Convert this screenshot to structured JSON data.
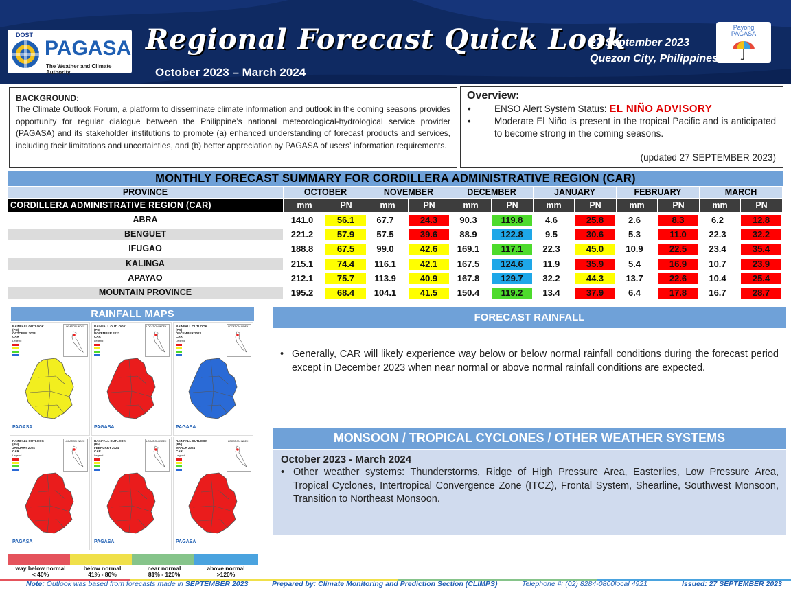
{
  "header": {
    "dost": "DOST",
    "agency": "PAGASA",
    "agency_tagline": "The Weather and Climate Authority",
    "title": "Regional Forecast Quick Look",
    "period": "October 2023 – March 2024",
    "date": "27 September 2023",
    "location": "Quezon City, Philippines",
    "payong_line1": "Payong",
    "payong_line2": "PAGASA"
  },
  "background": {
    "heading": "BACKGROUND:",
    "text": "The Climate Outlook Forum, a platform to disseminate climate information and outlook in the coming seasons provides opportunity for regular dialogue between the Philippine’s national meteorological-hydrological service provider (PAGASA) and its stakeholder institutions to promote (a) enhanced understanding of forecast products and services, including their limitations and uncertainties, and (b) better appreciation by PAGASA of users’ information requirements."
  },
  "overview": {
    "heading": "Overview:",
    "enso_label": "ENSO Alert System Status: ",
    "enso_status": "EL NIÑO ADVISORY",
    "elnino_text": "Moderate El Niño is present in the tropical Pacific and is anticipated to become strong in the coming seasons.",
    "updated": "(updated 27 SEPTEMBER 2023)"
  },
  "table": {
    "title": "MONTHLY FORECAST SUMMARY FOR CORDILLERA ADMINISTRATIVE REGION (CAR)",
    "province_header": "PROVINCE",
    "region_label": "CORDILLERA ADMINISTRATIVE REGION (CAR)",
    "months": [
      "OCTOBER",
      "NOVEMBER",
      "DECEMBER",
      "JANUARY",
      "FEBRUARY",
      "MARCH"
    ],
    "col_mm": "mm",
    "col_pn": "PN",
    "rows": [
      {
        "province": "ABRA",
        "mm": [
          "141.0",
          "67.7",
          "90.3",
          "4.6",
          "2.6",
          "6.2"
        ],
        "pn": [
          "56.1",
          "24.3",
          "119.8",
          "25.8",
          "8.3",
          "12.8"
        ]
      },
      {
        "province": "BENGUET",
        "mm": [
          "221.2",
          "57.5",
          "88.9",
          "9.5",
          "5.3",
          "22.3"
        ],
        "pn": [
          "57.9",
          "39.6",
          "122.8",
          "30.6",
          "11.0",
          "32.2"
        ]
      },
      {
        "province": "IFUGAO",
        "mm": [
          "188.8",
          "99.0",
          "169.1",
          "22.3",
          "10.9",
          "23.4"
        ],
        "pn": [
          "67.5",
          "42.6",
          "117.1",
          "45.0",
          "22.5",
          "35.4"
        ]
      },
      {
        "province": "KALINGA",
        "mm": [
          "215.1",
          "116.1",
          "167.5",
          "11.9",
          "5.4",
          "10.7"
        ],
        "pn": [
          "74.4",
          "42.1",
          "124.6",
          "35.9",
          "16.9",
          "23.9"
        ]
      },
      {
        "province": "APAYAO",
        "mm": [
          "212.1",
          "113.9",
          "167.8",
          "32.2",
          "13.7",
          "10.4"
        ],
        "pn": [
          "75.7",
          "40.9",
          "129.7",
          "44.3",
          "22.6",
          "25.4"
        ]
      },
      {
        "province": "MOUNTAIN PROVINCE",
        "mm": [
          "195.2",
          "104.1",
          "150.4",
          "13.4",
          "6.4",
          "16.7"
        ],
        "pn": [
          "68.4",
          "41.5",
          "119.2",
          "37.9",
          "17.8",
          "28.7"
        ]
      }
    ]
  },
  "rainfall_maps": {
    "heading": "RAINFALL MAPS",
    "maps": [
      {
        "title1": "RAINFALL OUTLOOK (PN)",
        "title2": "OCTOBER 2023",
        "title3": "CAR",
        "color": "#f2ee1f"
      },
      {
        "title1": "RAINFALL OUTLOOK (PN)",
        "title2": "NOVEMBER 2023",
        "title3": "CAR",
        "color": "#ea1c1c"
      },
      {
        "title1": "RAINFALL OUTLOOK (PN)",
        "title2": "DECEMBER 2023",
        "title3": "CAR",
        "color": "#2a6ad6"
      },
      {
        "title1": "RAINFALL OUTLOOK (PN)",
        "title2": "JANUARY 2024",
        "title3": "CAR",
        "color": "#ea1c1c"
      },
      {
        "title1": "RAINFALL OUTLOOK (PN)",
        "title2": "FEBRUARY 2024",
        "title3": "CAR",
        "color": "#ea1c1c"
      },
      {
        "title1": "RAINFALL OUTLOOK (PN)",
        "title2": "MARCH 2024",
        "title3": "CAR",
        "color": "#ea1c1c"
      }
    ],
    "legend_label": "Legend",
    "location_label": "LOCATION INDEX",
    "pagasa_label": "PAGASA"
  },
  "legend": [
    {
      "label": "way below normal",
      "range": "< 40%",
      "color": "#e5535c"
    },
    {
      "label": "below normal",
      "range": "41%  - 80%",
      "color": "#f0e04a"
    },
    {
      "label": "near normal",
      "range": "81% - 120%",
      "color": "#86c48a"
    },
    {
      "label": "above normal",
      "range": ">120%",
      "color": "#4aa3df"
    }
  ],
  "forecast_rainfall": {
    "heading": "FORECAST RAINFALL",
    "text": "Generally, CAR will likely experience way below or below normal rainfall conditions during the forecast period except in December 2023 when near normal or above normal rainfall conditions are expected."
  },
  "monsoon": {
    "heading": "MONSOON / TROPICAL CYCLONES / OTHER WEATHER SYSTEMS",
    "period": "October 2023 - March 2024",
    "text": "Other weather systems: Thunderstorms,  Ridge of High Pressure Area,  Easterlies, Low Pressure Area, Tropical Cyclones, Intertropical Convergence Zone (ITCZ), Frontal System, Shearline, Southwest Monsoon, Transition to Northeast Monsoon."
  },
  "footer": {
    "note_label": "Note:",
    "note": " Outlook was based from forecasts made in ",
    "note_month": "SEPTEMBER 2023",
    "prepared": "Prepared by: Climate Monitoring and Prediction Section (CLIMPS)",
    "telephone": "Telephone #: (02) 8284-0800local 4921",
    "issued": "Issued: 27 SEPTEMBER 2023"
  },
  "colors": {
    "pn_way_below": "#ff0000",
    "pn_below": "#ffff00",
    "pn_near": "#4ddb2c",
    "pn_above": "#1ea7e8"
  }
}
